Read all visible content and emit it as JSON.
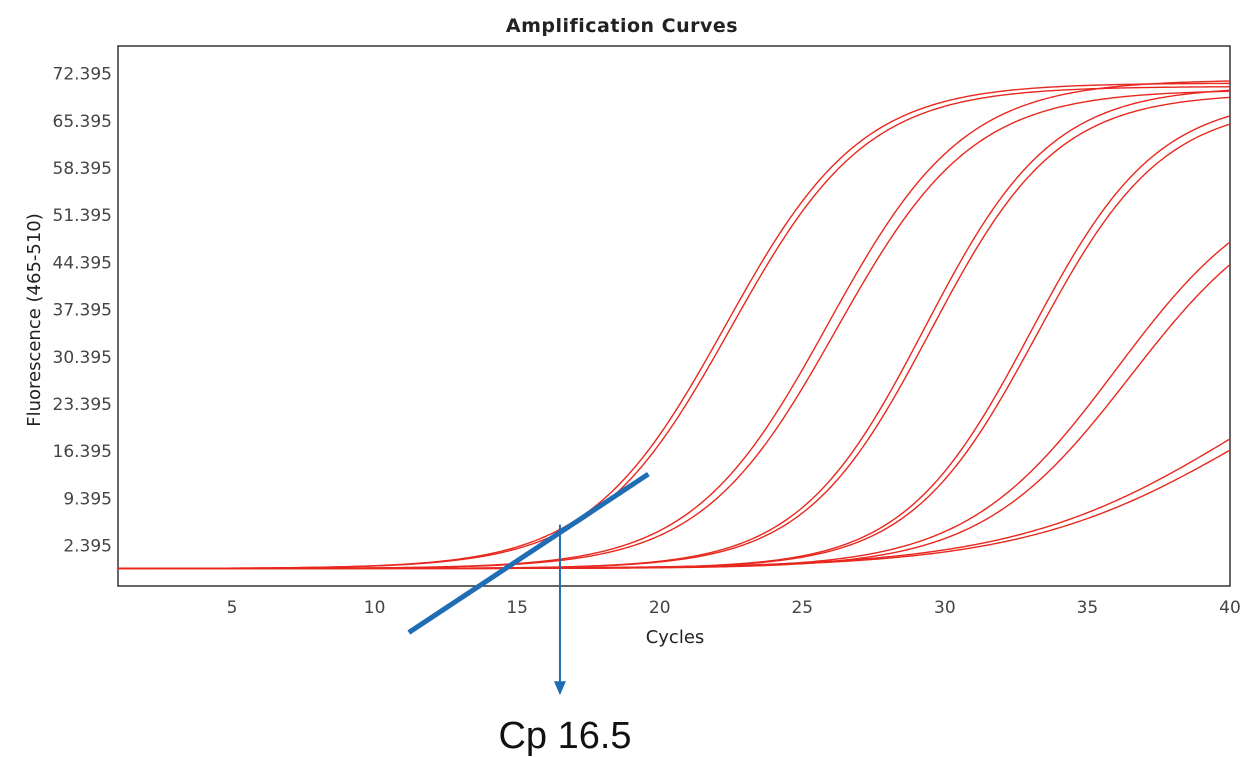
{
  "chart_data": {
    "type": "line",
    "title": "Amplification Curves",
    "xlabel": "Cycles",
    "ylabel": "Fluorescence (465-510)",
    "xlim": [
      1,
      40
    ],
    "ylim": [
      -3.6,
      76.5
    ],
    "x_ticks": [
      "5",
      "10",
      "15",
      "20",
      "25",
      "30",
      "35",
      "40"
    ],
    "y_ticks": [
      "72.395",
      "65.395",
      "58.395",
      "51.395",
      "44.395",
      "37.395",
      "30.395",
      "23.395",
      "16.395",
      "9.395",
      "2.395"
    ],
    "grid": false,
    "colors": {
      "curve": "#e8281e",
      "annotation": "#1f6db5",
      "frame": "#333333"
    },
    "series": [
      {
        "midpoint": 22.3,
        "max": 71.0,
        "slope": 0.42
      },
      {
        "midpoint": 22.5,
        "max": 70.5,
        "slope": 0.42
      },
      {
        "midpoint": 25.9,
        "max": 71.5,
        "slope": 0.42
      },
      {
        "midpoint": 26.2,
        "max": 70.0,
        "slope": 0.42
      },
      {
        "midpoint": 29.3,
        "max": 70.5,
        "slope": 0.45
      },
      {
        "midpoint": 29.5,
        "max": 69.5,
        "slope": 0.45
      },
      {
        "midpoint": 33.0,
        "max": 69.0,
        "slope": 0.45
      },
      {
        "midpoint": 33.2,
        "max": 68.0,
        "slope": 0.45
      },
      {
        "midpoint": 36.0,
        "max": 58.0,
        "slope": 0.38
      },
      {
        "midpoint": 36.5,
        "max": 56.0,
        "slope": 0.38
      },
      {
        "midpoint": 40.5,
        "max": 40.0,
        "slope": 0.25
      },
      {
        "midpoint": 40.8,
        "max": 38.0,
        "slope": 0.25
      }
    ],
    "baseline": -1.0,
    "annotations": {
      "tangent_line": {
        "x1": 11.2,
        "y1": -10.5,
        "x2": 19.6,
        "y2": 13.0
      },
      "arrow": {
        "x": 16.5,
        "y_from": 5.5,
        "y_to": -19.5
      },
      "cp_label": "Cp 16.5"
    }
  }
}
